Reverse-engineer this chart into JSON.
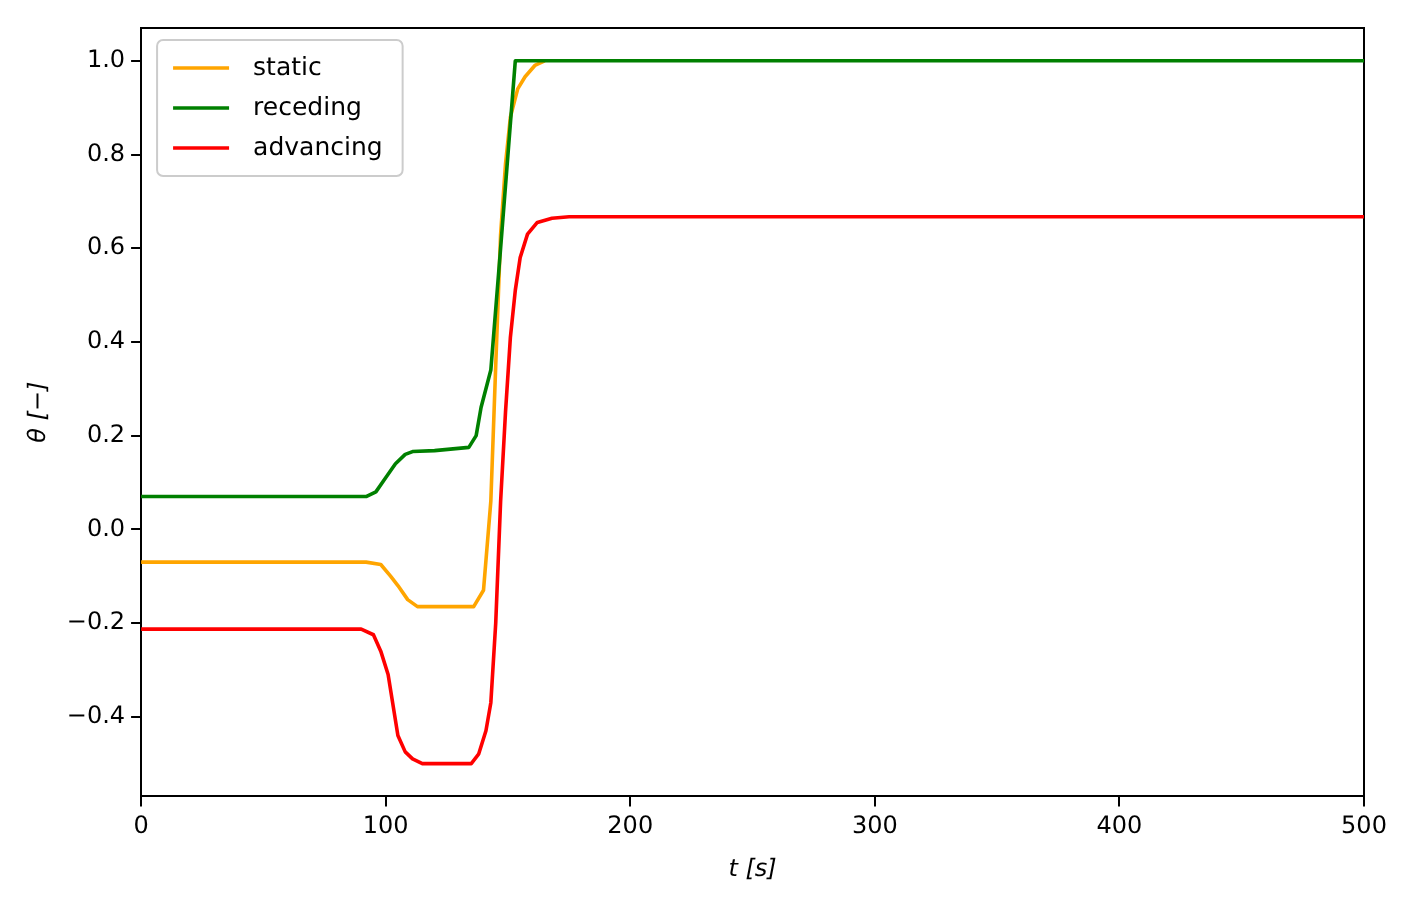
{
  "chart_data": {
    "type": "line",
    "xlabel": "t [s]",
    "ylabel": "θ [−]",
    "xlim": [
      0,
      500
    ],
    "xticks": [
      0,
      100,
      200,
      300,
      400,
      500
    ],
    "ylim": [
      -0.57,
      1.07
    ],
    "yticks": [
      {
        "value": -0.4,
        "label": "−0.4"
      },
      {
        "value": -0.2,
        "label": "−0.2"
      },
      {
        "value": 0,
        "label": "0.0"
      },
      {
        "value": 0.2,
        "label": "0.2"
      },
      {
        "value": 0.4,
        "label": "0.4"
      },
      {
        "value": 0.6,
        "label": "0.6"
      },
      {
        "value": 0.8,
        "label": "0.8"
      },
      {
        "value": 1,
        "label": "1.0"
      }
    ],
    "grid": false,
    "legend": "top left",
    "marker": "none",
    "line_style": "solid",
    "series": [
      {
        "name": "static",
        "color": "#ffa500",
        "x": [
          0,
          92,
          98,
          102,
          105,
          109,
          113,
          136,
          140,
          143,
          145,
          147,
          149,
          151,
          154,
          157,
          161,
          165
        ],
        "values": [
          -0.07,
          -0.07,
          -0.075,
          -0.1,
          -0.12,
          -0.15,
          -0.165,
          -0.165,
          -0.13,
          0.06,
          0.35,
          0.63,
          0.78,
          0.88,
          0.94,
          0.966,
          0.99,
          1.0
        ]
      },
      {
        "name": "receding",
        "color": "#008000",
        "x": [
          0,
          92,
          96,
          100,
          104,
          108,
          111,
          120,
          134,
          137,
          139,
          141,
          143,
          147,
          150,
          153,
          500
        ],
        "values": [
          0.07,
          0.07,
          0.08,
          0.11,
          0.14,
          0.16,
          0.166,
          0.168,
          0.175,
          0.2,
          0.26,
          0.3,
          0.34,
          0.6,
          0.8,
          1.0,
          1.0
        ]
      },
      {
        "name": "advancing",
        "color": "#ff0000",
        "x": [
          0,
          90,
          95,
          98,
          101,
          105,
          108,
          111,
          115,
          135,
          138,
          141,
          143,
          145,
          147,
          149,
          151,
          153,
          155,
          158,
          162,
          168,
          175,
          500
        ],
        "values": [
          -0.213,
          -0.213,
          -0.225,
          -0.26,
          -0.31,
          -0.44,
          -0.475,
          -0.49,
          -0.5,
          -0.5,
          -0.48,
          -0.43,
          -0.37,
          -0.2,
          0.06,
          0.25,
          0.41,
          0.51,
          0.58,
          0.63,
          0.655,
          0.664,
          0.667,
          0.667
        ]
      }
    ]
  }
}
